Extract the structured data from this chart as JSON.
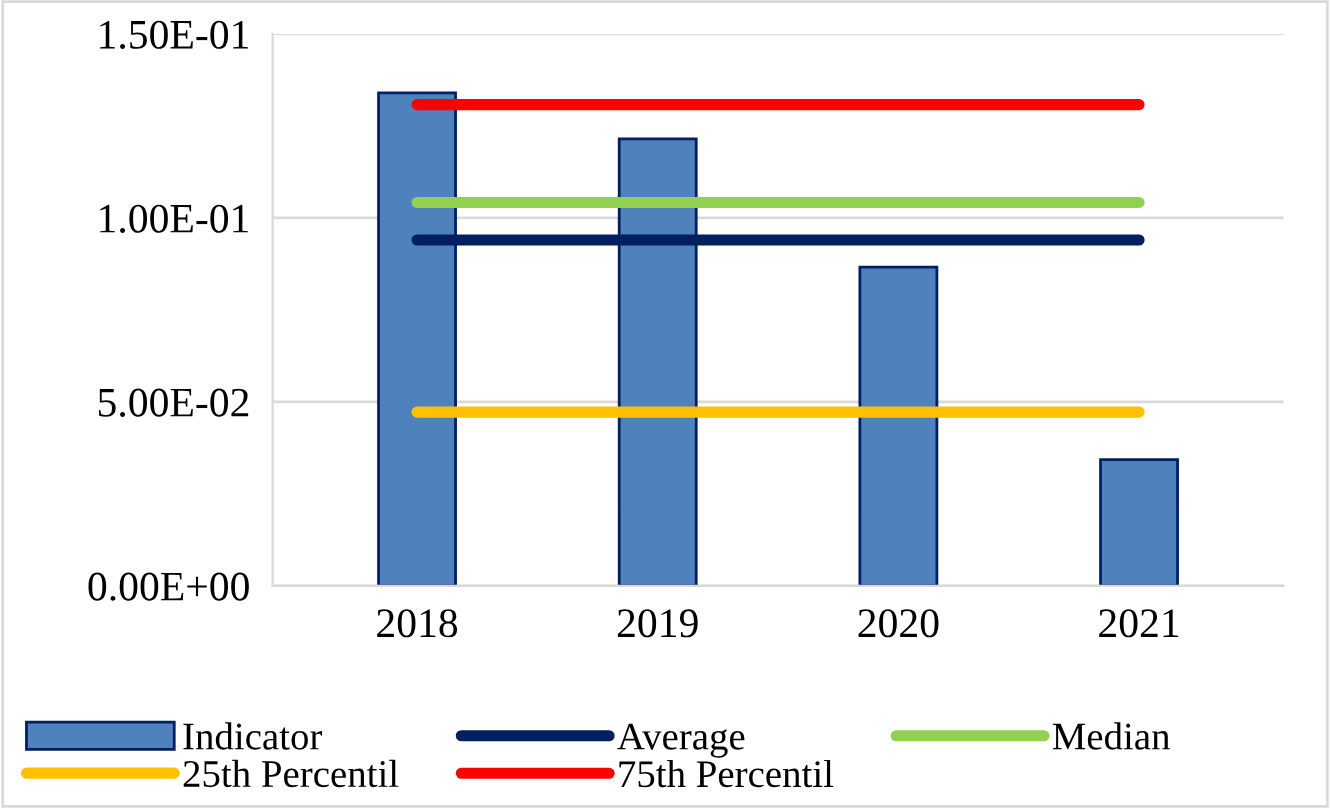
{
  "chart_data": {
    "type": "bar",
    "categories": [
      "2018",
      "2019",
      "2020",
      "2021"
    ],
    "series": [
      {
        "name": "Indicator",
        "color": "#4f81bd",
        "values": [
          0.134,
          0.1215,
          0.0866,
          0.0343
        ]
      },
      {
        "name": "Average",
        "type": "line",
        "color": "#002060",
        "values": [
          0.094,
          0.094,
          0.094,
          0.094
        ]
      },
      {
        "name": "Median",
        "type": "line",
        "color": "#92d050",
        "values": [
          0.1042,
          0.1042,
          0.1042,
          0.1042
        ]
      },
      {
        "name": "25th Percentil",
        "type": "line",
        "color": "#ffc000",
        "values": [
          0.0472,
          0.0472,
          0.0472,
          0.0472
        ]
      },
      {
        "name": "75th Percentil",
        "type": "line",
        "color": "#ff0000",
        "values": [
          0.1308,
          0.1308,
          0.1308,
          0.1308
        ]
      }
    ],
    "ylim": [
      0,
      0.15
    ],
    "yticks": [
      {
        "value": 0,
        "label": "0.00E+00"
      },
      {
        "value": 0.05,
        "label": "5.00E-02"
      },
      {
        "value": 0.1,
        "label": "1.00E-01"
      },
      {
        "value": 0.15,
        "label": "1.50E-01"
      }
    ],
    "grid": "y",
    "legend": "bottom",
    "marker": "none",
    "line_style": "solid"
  }
}
